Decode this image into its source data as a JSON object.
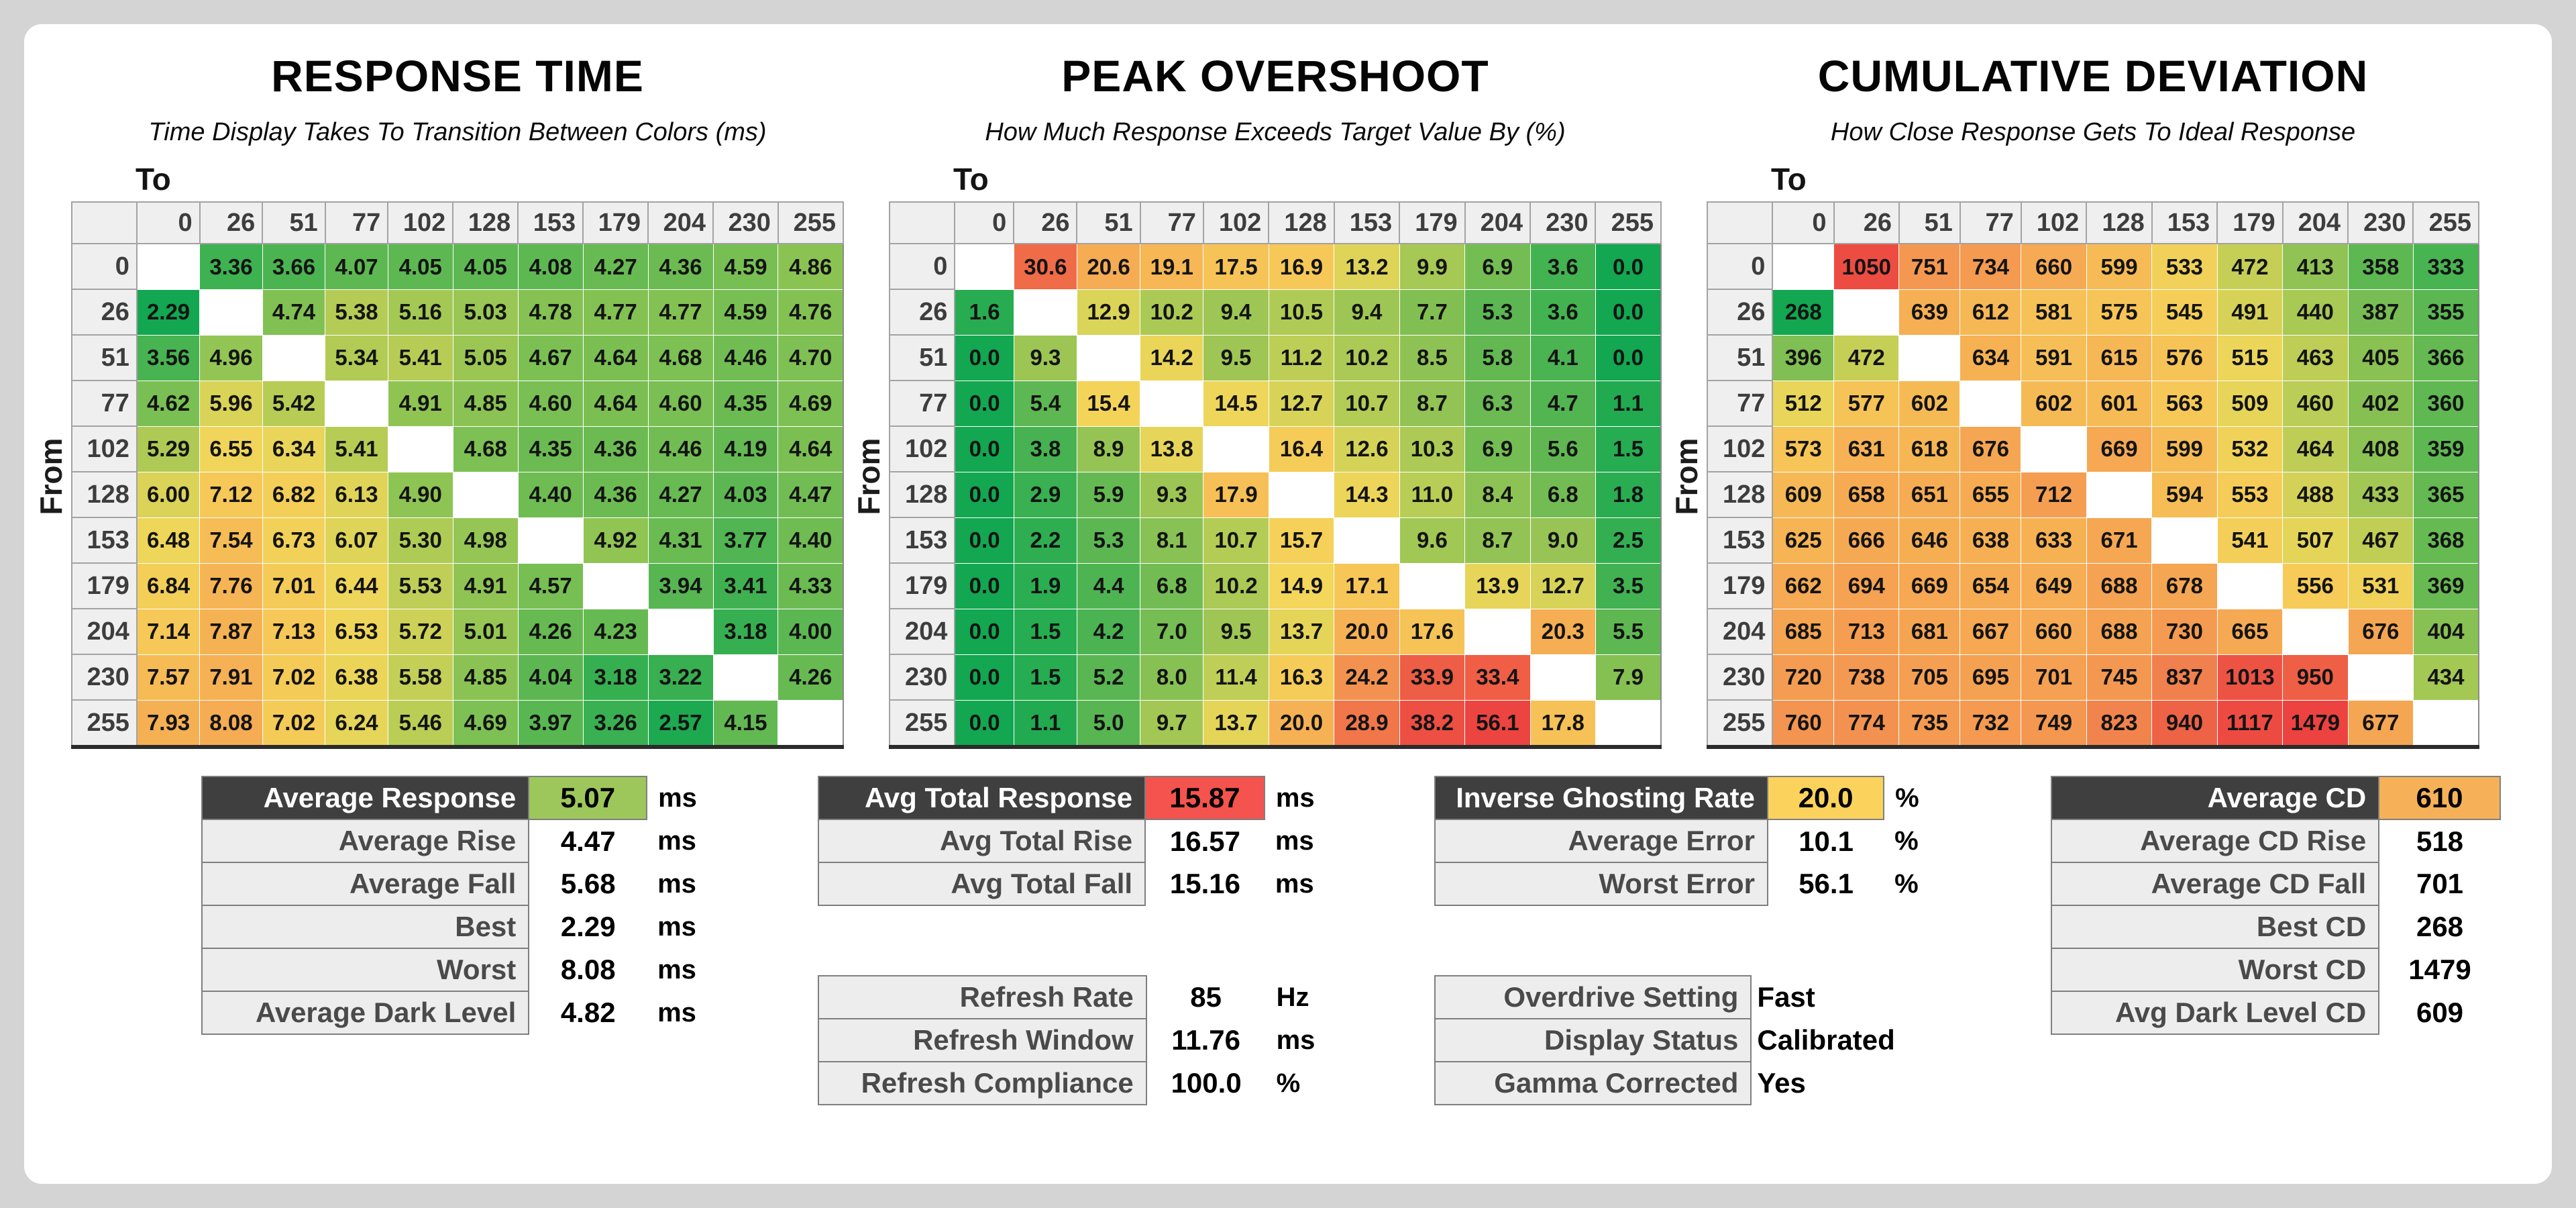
{
  "page": {
    "background": "#d4d4d4",
    "card_background": "#ffffff",
    "highlight_green": "#9ec75b",
    "highlight_red": "#f4534e",
    "highlight_yellow": "#fbd35c",
    "highlight_orange": "#f6b158"
  },
  "axis": {
    "to_label": "To",
    "from_label": "From"
  },
  "chart_data": [
    {
      "type": "heatmap",
      "title": "RESPONSE TIME",
      "subtitle": "Time Display Takes To Transition Between Colors (ms)",
      "xlabel": "To",
      "ylabel": "From",
      "categories": [
        "0",
        "26",
        "51",
        "77",
        "102",
        "128",
        "153",
        "179",
        "204",
        "230",
        "255"
      ],
      "decimals": 2,
      "values": [
        [
          null,
          3.36,
          3.66,
          4.07,
          4.05,
          4.05,
          4.08,
          4.27,
          4.36,
          4.59,
          4.86
        ],
        [
          2.29,
          null,
          4.74,
          5.38,
          5.16,
          5.03,
          4.78,
          4.77,
          4.77,
          4.59,
          4.76
        ],
        [
          3.56,
          4.96,
          null,
          5.34,
          5.41,
          5.05,
          4.67,
          4.64,
          4.68,
          4.46,
          4.7
        ],
        [
          4.62,
          5.96,
          5.42,
          null,
          4.91,
          4.85,
          4.6,
          4.64,
          4.6,
          4.35,
          4.69
        ],
        [
          5.29,
          6.55,
          6.34,
          5.41,
          null,
          4.68,
          4.35,
          4.36,
          4.46,
          4.19,
          4.64
        ],
        [
          6.0,
          7.12,
          6.82,
          6.13,
          4.9,
          null,
          4.4,
          4.36,
          4.27,
          4.03,
          4.47
        ],
        [
          6.48,
          7.54,
          6.73,
          6.07,
          5.3,
          4.98,
          null,
          4.92,
          4.31,
          3.77,
          4.4
        ],
        [
          6.84,
          7.76,
          7.01,
          6.44,
          5.53,
          4.91,
          4.57,
          null,
          3.94,
          3.41,
          4.33
        ],
        [
          7.14,
          7.87,
          7.13,
          6.53,
          5.72,
          5.01,
          4.26,
          4.23,
          null,
          3.18,
          4.0
        ],
        [
          7.57,
          7.91,
          7.02,
          6.38,
          5.58,
          4.85,
          4.04,
          3.18,
          3.22,
          null,
          4.26
        ],
        [
          7.93,
          8.08,
          7.02,
          6.24,
          5.46,
          4.69,
          3.97,
          3.26,
          2.57,
          4.15,
          null
        ]
      ],
      "color_anchors": [
        [
          2.29,
          "#12A750"
        ],
        [
          3.3,
          "#3BB051"
        ],
        [
          4.1,
          "#5FB852"
        ],
        [
          4.7,
          "#7EC053"
        ],
        [
          5.2,
          "#A7C954"
        ],
        [
          5.8,
          "#D3D257"
        ],
        [
          6.5,
          "#EFD65A"
        ],
        [
          7.1,
          "#F6C957"
        ],
        [
          7.6,
          "#F6BA55"
        ],
        [
          8.08,
          "#F5AC52"
        ]
      ]
    },
    {
      "type": "heatmap",
      "title": "PEAK OVERSHOOT",
      "subtitle": "How Much Response Exceeds Target Value By (%)",
      "xlabel": "To",
      "ylabel": "From",
      "categories": [
        "0",
        "26",
        "51",
        "77",
        "102",
        "128",
        "153",
        "179",
        "204",
        "230",
        "255"
      ],
      "decimals": 1,
      "values": [
        [
          null,
          30.6,
          20.6,
          19.1,
          17.5,
          16.9,
          13.2,
          9.9,
          6.9,
          3.6,
          0.0
        ],
        [
          1.6,
          null,
          12.9,
          10.2,
          9.4,
          10.5,
          9.4,
          7.7,
          5.3,
          3.6,
          0.0
        ],
        [
          0.0,
          9.3,
          null,
          14.2,
          9.5,
          11.2,
          10.2,
          8.5,
          5.8,
          4.1,
          0.0
        ],
        [
          0.0,
          5.4,
          15.4,
          null,
          14.5,
          12.7,
          10.7,
          8.7,
          6.3,
          4.7,
          1.1
        ],
        [
          0.0,
          3.8,
          8.9,
          13.8,
          null,
          16.4,
          12.6,
          10.3,
          6.9,
          5.6,
          1.5
        ],
        [
          0.0,
          2.9,
          5.9,
          9.3,
          17.9,
          null,
          14.3,
          11.0,
          8.4,
          6.8,
          1.8
        ],
        [
          0.0,
          2.2,
          5.3,
          8.1,
          10.7,
          15.7,
          null,
          9.6,
          8.7,
          9.0,
          2.5
        ],
        [
          0.0,
          1.9,
          4.4,
          6.8,
          10.2,
          14.9,
          17.1,
          null,
          13.9,
          12.7,
          3.5
        ],
        [
          0.0,
          1.5,
          4.2,
          7.0,
          9.5,
          13.7,
          20.0,
          17.6,
          null,
          20.3,
          5.5
        ],
        [
          0.0,
          1.5,
          5.2,
          8.0,
          11.4,
          16.3,
          24.2,
          33.9,
          33.4,
          null,
          7.9
        ],
        [
          0.0,
          1.1,
          5.0,
          9.7,
          13.7,
          20.0,
          28.9,
          38.2,
          56.1,
          17.8,
          null
        ]
      ],
      "color_anchors": [
        [
          0,
          "#12A750"
        ],
        [
          3,
          "#3AB051"
        ],
        [
          5,
          "#57B552"
        ],
        [
          7,
          "#76BD53"
        ],
        [
          9,
          "#97C454"
        ],
        [
          11,
          "#B8CD55"
        ],
        [
          13,
          "#DCD458"
        ],
        [
          15,
          "#F4D65A"
        ],
        [
          17,
          "#F6C757"
        ],
        [
          19,
          "#F6B854"
        ],
        [
          21,
          "#F5A953"
        ],
        [
          24,
          "#F39350"
        ],
        [
          28,
          "#F17B4B"
        ],
        [
          32,
          "#EF6346"
        ],
        [
          38,
          "#ED4F43"
        ],
        [
          56.1,
          "#EC4440"
        ]
      ]
    },
    {
      "type": "heatmap",
      "title": "CUMULATIVE DEVIATION",
      "subtitle": "How Close Response Gets To Ideal Response",
      "xlabel": "To",
      "ylabel": "From",
      "categories": [
        "0",
        "26",
        "51",
        "77",
        "102",
        "128",
        "153",
        "179",
        "204",
        "230",
        "255"
      ],
      "decimals": 0,
      "values": [
        [
          null,
          1050,
          751,
          734,
          660,
          599,
          533,
          472,
          413,
          358,
          333
        ],
        [
          268,
          null,
          639,
          612,
          581,
          575,
          545,
          491,
          440,
          387,
          355
        ],
        [
          396,
          472,
          null,
          634,
          591,
          615,
          576,
          515,
          463,
          405,
          366
        ],
        [
          512,
          577,
          602,
          null,
          602,
          601,
          563,
          509,
          460,
          402,
          360
        ],
        [
          573,
          631,
          618,
          676,
          null,
          669,
          599,
          532,
          464,
          408,
          359
        ],
        [
          609,
          658,
          651,
          655,
          712,
          null,
          594,
          553,
          488,
          433,
          365
        ],
        [
          625,
          666,
          646,
          638,
          633,
          671,
          null,
          541,
          507,
          467,
          368
        ],
        [
          662,
          694,
          669,
          654,
          649,
          688,
          678,
          null,
          556,
          531,
          369
        ],
        [
          685,
          713,
          681,
          667,
          660,
          688,
          730,
          665,
          null,
          676,
          404
        ],
        [
          720,
          738,
          705,
          695,
          701,
          745,
          837,
          1013,
          950,
          null,
          434
        ],
        [
          760,
          774,
          735,
          732,
          749,
          823,
          940,
          1117,
          1479,
          677,
          null
        ]
      ],
      "color_anchors": [
        [
          268,
          "#12A750"
        ],
        [
          320,
          "#3BB051"
        ],
        [
          360,
          "#5FB852"
        ],
        [
          400,
          "#84C053"
        ],
        [
          440,
          "#A8C954"
        ],
        [
          480,
          "#CCD057"
        ],
        [
          515,
          "#EBD65A"
        ],
        [
          550,
          "#F6CD58"
        ],
        [
          590,
          "#F6BE56"
        ],
        [
          640,
          "#F6AF53"
        ],
        [
          700,
          "#F5A052"
        ],
        [
          770,
          "#F39350"
        ],
        [
          850,
          "#F07C4C"
        ],
        [
          950,
          "#EE5F45"
        ],
        [
          1050,
          "#ED4C42"
        ],
        [
          1479,
          "#EC4340"
        ]
      ]
    }
  ],
  "stats": {
    "groups": [
      {
        "name": "response-time-stats",
        "tables": [
          {
            "rows": [
              {
                "label": "Average Response",
                "value": "5.07",
                "unit": "ms",
                "header": true,
                "value_bg": "#9ec75b"
              },
              {
                "label": "Average Rise",
                "value": "4.47",
                "unit": "ms"
              },
              {
                "label": "Average Fall",
                "value": "5.68",
                "unit": "ms"
              },
              {
                "label": "Best",
                "value": "2.29",
                "unit": "ms"
              },
              {
                "label": "Worst",
                "value": "8.08",
                "unit": "ms"
              },
              {
                "label": "Average Dark Level",
                "value": "4.82",
                "unit": "ms"
              }
            ]
          }
        ]
      },
      {
        "name": "total-response-stats",
        "tables": [
          {
            "rows": [
              {
                "label": "Avg Total Response",
                "value": "15.87",
                "unit": "ms",
                "header": true,
                "value_bg": "#f4534e"
              },
              {
                "label": "Avg Total Rise",
                "value": "16.57",
                "unit": "ms"
              },
              {
                "label": "Avg Total Fall",
                "value": "15.16",
                "unit": "ms"
              }
            ]
          },
          {
            "rows": [
              {
                "label": "Refresh Rate",
                "value": "85",
                "unit": "Hz"
              },
              {
                "label": "Refresh Window",
                "value": "11.76",
                "unit": "ms"
              },
              {
                "label": "Refresh Compliance",
                "value": "100.0",
                "unit": "%"
              }
            ]
          }
        ]
      },
      {
        "name": "overshoot-stats",
        "tables": [
          {
            "rows": [
              {
                "label": "Inverse Ghosting Rate",
                "value": "20.0",
                "unit": "%",
                "header": true,
                "value_bg": "#fbd35c"
              },
              {
                "label": "Average Error",
                "value": "10.1",
                "unit": "%"
              },
              {
                "label": "Worst Error",
                "value": "56.1",
                "unit": "%"
              }
            ]
          },
          {
            "rows": [
              {
                "label": "Overdrive Setting",
                "value": "Fast",
                "unit": "",
                "text": true
              },
              {
                "label": "Display Status",
                "value": "Calibrated",
                "unit": "",
                "text": true
              },
              {
                "label": "Gamma Corrected",
                "value": "Yes",
                "unit": "",
                "text": true
              }
            ]
          }
        ]
      },
      {
        "name": "cumulative-deviation-stats",
        "tables": [
          {
            "rows": [
              {
                "label": "Average CD",
                "value": "610",
                "unit": "",
                "header": true,
                "value_bg": "#f6b158"
              },
              {
                "label": "Average CD Rise",
                "value": "518",
                "unit": ""
              },
              {
                "label": "Average CD Fall",
                "value": "701",
                "unit": ""
              },
              {
                "label": "Best CD",
                "value": "268",
                "unit": ""
              },
              {
                "label": "Worst CD",
                "value": "1479",
                "unit": ""
              },
              {
                "label": "Avg Dark Level CD",
                "value": "609",
                "unit": ""
              }
            ]
          }
        ]
      }
    ]
  }
}
